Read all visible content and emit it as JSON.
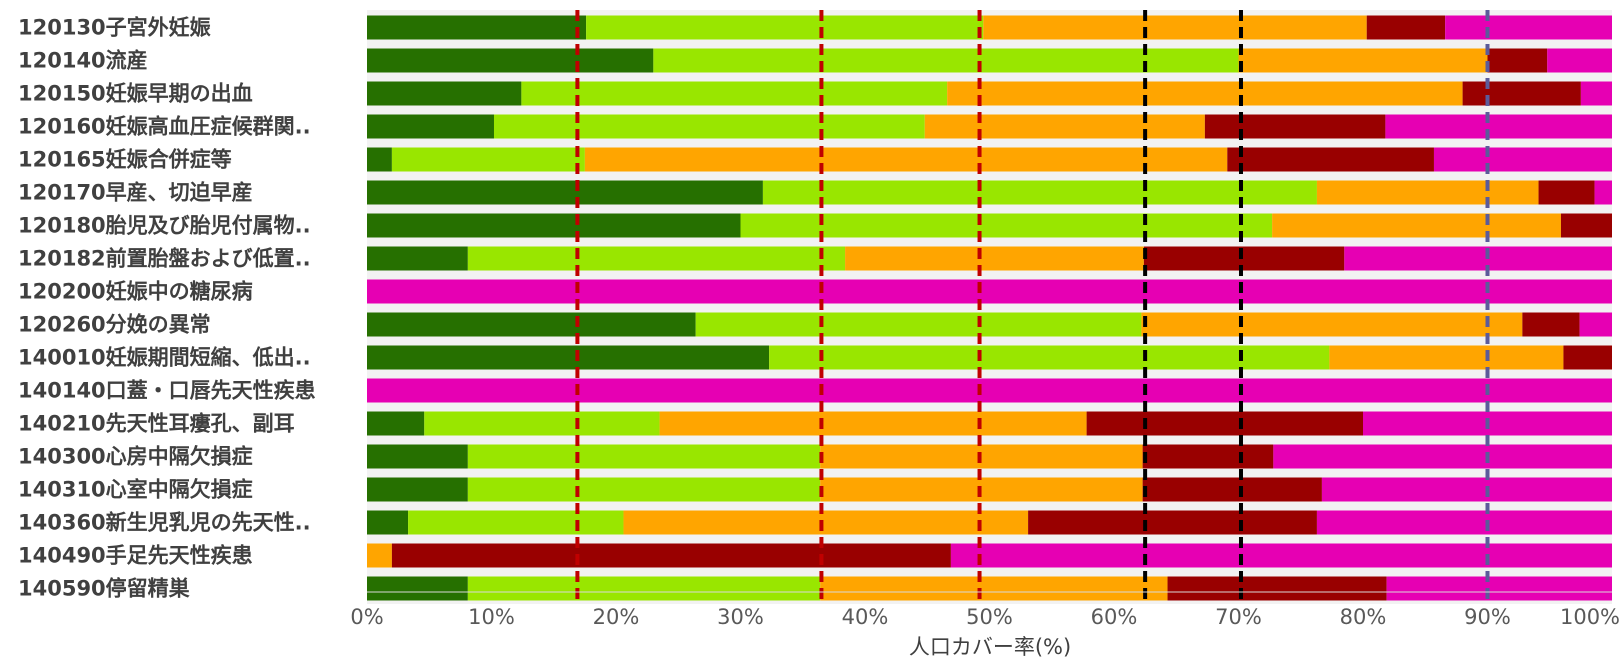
{
  "chart_data": {
    "type": "bar",
    "orientation": "horizontal",
    "stacked": true,
    "xlabel": "人口カバー率(%)",
    "xlim": [
      0,
      100
    ],
    "x_ticks": [
      "0%",
      "10%",
      "20%",
      "30%",
      "40%",
      "50%",
      "60%",
      "70%",
      "80%",
      "90%",
      "100%"
    ],
    "categories": [
      "120130子宮外妊娠",
      "120140流産",
      "120150妊娠早期の出血",
      "120160妊娠高血圧症候群関..",
      "120165妊娠合併症等",
      "120170早産、切迫早産",
      "120180胎児及び胎児付属物..",
      "120182前置胎盤および低置..",
      "120200妊娠中の糖尿病",
      "120260分娩の異常",
      "140010妊娠期間短縮、低出..",
      "140140口蓋・口唇先天性疾患",
      "140210先天性耳瘻孔、副耳",
      "140300心房中隔欠損症",
      "140310心室中隔欠損症",
      "140360新生児乳児の先天性..",
      "140490手足先天性疾患",
      "140590停留精巣"
    ],
    "series": [
      {
        "color": "#267000",
        "values": [
          17.6,
          23.0,
          12.4,
          10.2,
          2.0,
          31.8,
          30.0,
          8.1,
          0,
          26.4,
          32.3,
          0,
          4.6,
          8.1,
          8.1,
          3.3,
          0,
          8.1
        ]
      },
      {
        "color": "#99e600",
        "values": [
          31.9,
          47.0,
          34.2,
          34.6,
          15.5,
          44.5,
          42.7,
          30.3,
          0,
          35.8,
          45.0,
          0,
          18.9,
          28.3,
          28.3,
          17.3,
          0,
          28.3
        ]
      },
      {
        "color": "#ffa500",
        "values": [
          30.8,
          20.0,
          41.4,
          22.5,
          51.6,
          17.8,
          23.2,
          24.0,
          0,
          30.6,
          18.8,
          0,
          34.3,
          25.9,
          25.9,
          32.5,
          2.0,
          27.9
        ]
      },
      {
        "color": "#990000",
        "values": [
          6.3,
          4.8,
          9.5,
          14.5,
          16.6,
          4.5,
          4.1,
          16.1,
          0,
          4.6,
          3.9,
          0,
          22.2,
          10.5,
          14.4,
          23.2,
          44.9,
          17.6
        ]
      },
      {
        "color": "#e600b3",
        "values": [
          13.4,
          5.2,
          2.5,
          18.2,
          14.3,
          1.4,
          0,
          21.5,
          100,
          2.6,
          0,
          100,
          20.0,
          27.2,
          23.3,
          23.7,
          53.1,
          18.1
        ]
      }
    ],
    "reference_lines": [
      {
        "x": 16.9,
        "color": "#c00000",
        "style": "dashed"
      },
      {
        "x": 36.5,
        "color": "#c00000",
        "style": "dashed"
      },
      {
        "x": 49.2,
        "color": "#c00000",
        "style": "dashed"
      },
      {
        "x": 62.5,
        "color": "#000000",
        "style": "dashed"
      },
      {
        "x": 70.2,
        "color": "#000000",
        "style": "dashed"
      },
      {
        "x": 90.0,
        "color": "#5b5b9a",
        "style": "dashed"
      }
    ],
    "grid": false,
    "legend": "none"
  }
}
